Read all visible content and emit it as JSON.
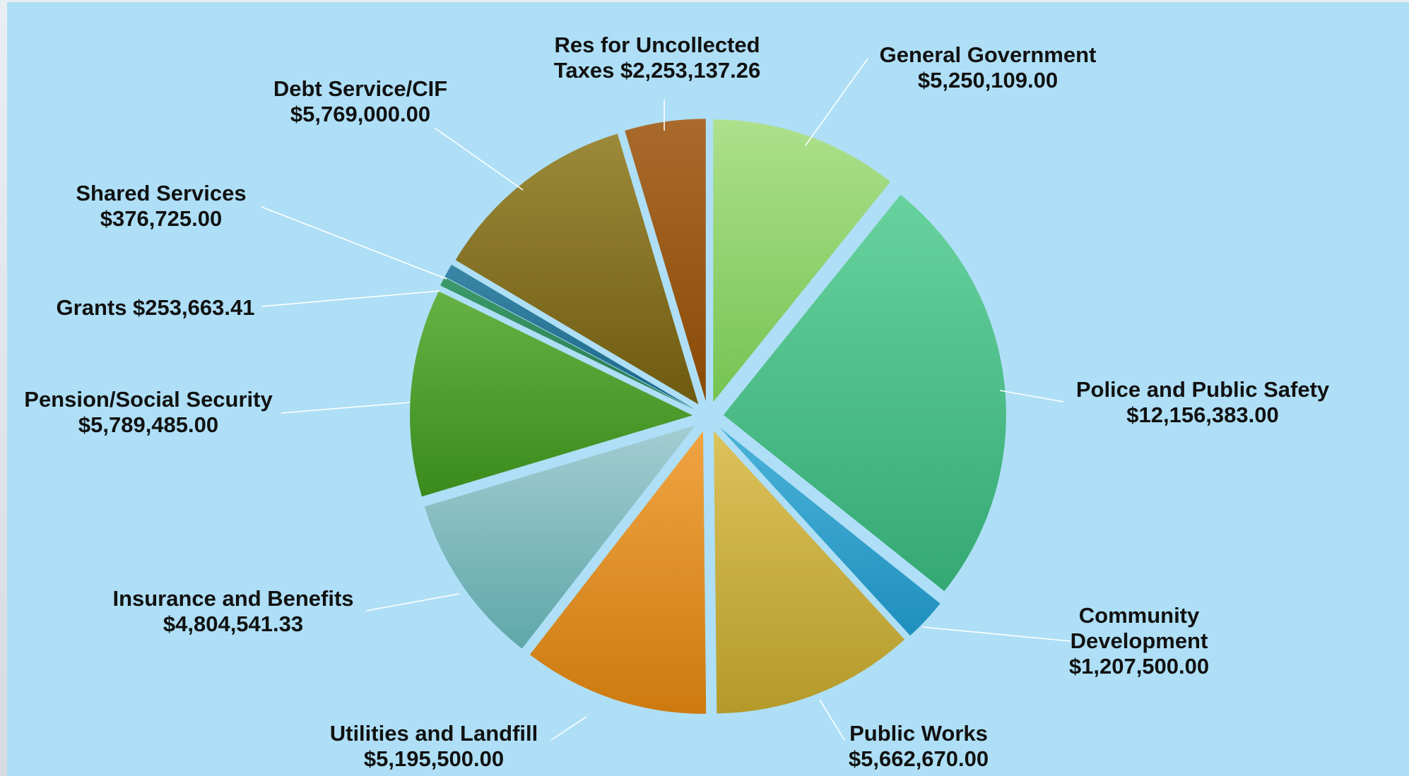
{
  "chart_data": {
    "type": "pie",
    "title": "",
    "legend": "none",
    "slices": [
      {
        "name": "General Government",
        "value": 5250109.0,
        "value_label": "$5,250,109.00",
        "label_lines": [
          "General Government",
          "$5,250,109.00"
        ],
        "color_top": "#aee08c",
        "color_bottom": "#74c452"
      },
      {
        "name": "Police and Public Safety",
        "value": 12156383.0,
        "value_label": "$12,156,383.00",
        "label_lines": [
          "Police and Public Safety",
          "$12,156,383.00"
        ],
        "color_top": "#68d29e",
        "color_bottom": "#34a873"
      },
      {
        "name": "Community Development",
        "value": 1207500.0,
        "value_label": "$1,207,500.00",
        "label_lines": [
          "Community",
          "Development",
          "$1,207,500.00"
        ],
        "color_top": "#4bb3d9",
        "color_bottom": "#1f8fbe"
      },
      {
        "name": "Public Works",
        "value": 5662670.0,
        "value_label": "$5,662,670.00",
        "label_lines": [
          "Public Works",
          "$5,662,670.00"
        ],
        "color_top": "#dcc25a",
        "color_bottom": "#b39a2a"
      },
      {
        "name": "Utilities and Landfill",
        "value": 5195500.0,
        "value_label": "$5,195,500.00",
        "label_lines": [
          "Utilities and Landfill",
          "$5,195,500.00"
        ],
        "color_top": "#f0a442",
        "color_bottom": "#cc7a10"
      },
      {
        "name": "Insurance and Benefits",
        "value": 4804541.33,
        "value_label": "$4,804,541.33",
        "label_lines": [
          "Insurance and Benefits",
          "$4,804,541.33"
        ],
        "color_top": "#a3cdd3",
        "color_bottom": "#5fa7a9"
      },
      {
        "name": "Pension/Social Security",
        "value": 5789485.0,
        "value_label": "$5,789,485.00",
        "label_lines": [
          "Pension/Social Security",
          "$5,789,485.00"
        ],
        "color_top": "#66b244",
        "color_bottom": "#3a8a1c"
      },
      {
        "name": "Grants",
        "value": 253663.41,
        "value_label": "$253,663.41",
        "label_lines": [
          "Grants $253,663.41"
        ],
        "color_top": "#3c9a6a",
        "color_bottom": "#2a7a50"
      },
      {
        "name": "Shared Services",
        "value": 376725.0,
        "value_label": "$376,725.00",
        "label_lines": [
          "Shared Services",
          "$376,725.00"
        ],
        "color_top": "#3a86a6",
        "color_bottom": "#1a6688"
      },
      {
        "name": "Debt Service/CIF",
        "value": 5769000.0,
        "value_label": "$5,769,000.00",
        "label_lines": [
          "Debt Service/CIF",
          "$5,769,000.00"
        ],
        "color_top": "#9c8a3a",
        "color_bottom": "#6e5a10"
      },
      {
        "name": "Res for Uncollected Taxes",
        "value": 2253137.26,
        "value_label": "$2,253,137.26",
        "label_lines": [
          "Res for Uncollected",
          "Taxes $2,253,137.26"
        ],
        "color_top": "#a96a2c",
        "color_bottom": "#8a4a06"
      }
    ]
  }
}
